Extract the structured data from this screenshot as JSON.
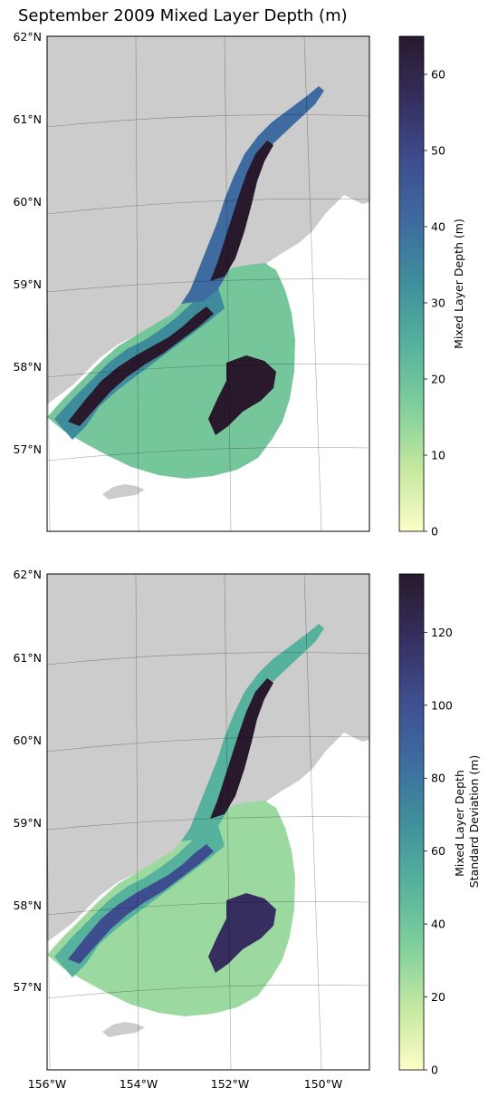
{
  "title": "September 2009 Mixed Layer Depth (m)",
  "lat_labels": [
    "62°N",
    "61°N",
    "60°N",
    "59°N",
    "58°N",
    "57°N"
  ],
  "lon_labels": [
    "156°W",
    "154°W",
    "152°W",
    "150°W"
  ],
  "colormap": [
    "#fdfec6",
    "#c4e8a0",
    "#80cf9c",
    "#56b29c",
    "#3f8f9c",
    "#3e6ba0",
    "#3e4d8e",
    "#352e5e",
    "#281a2c"
  ],
  "land_color": "#cccccc",
  "panels": [
    {
      "colorbar_label": [
        "Mixed Layer Depth (m)"
      ],
      "colorbar_range": [
        0,
        65
      ],
      "colorbar_ticks": [
        "0",
        "10",
        "20",
        "30",
        "40",
        "50",
        "60"
      ]
    },
    {
      "colorbar_label": [
        "Mixed Layer Depth",
        "Standard Deviation (m)"
      ],
      "colorbar_range": [
        0,
        136
      ],
      "colorbar_ticks": [
        "0",
        "20",
        "40",
        "60",
        "80",
        "100",
        "120"
      ]
    }
  ]
}
